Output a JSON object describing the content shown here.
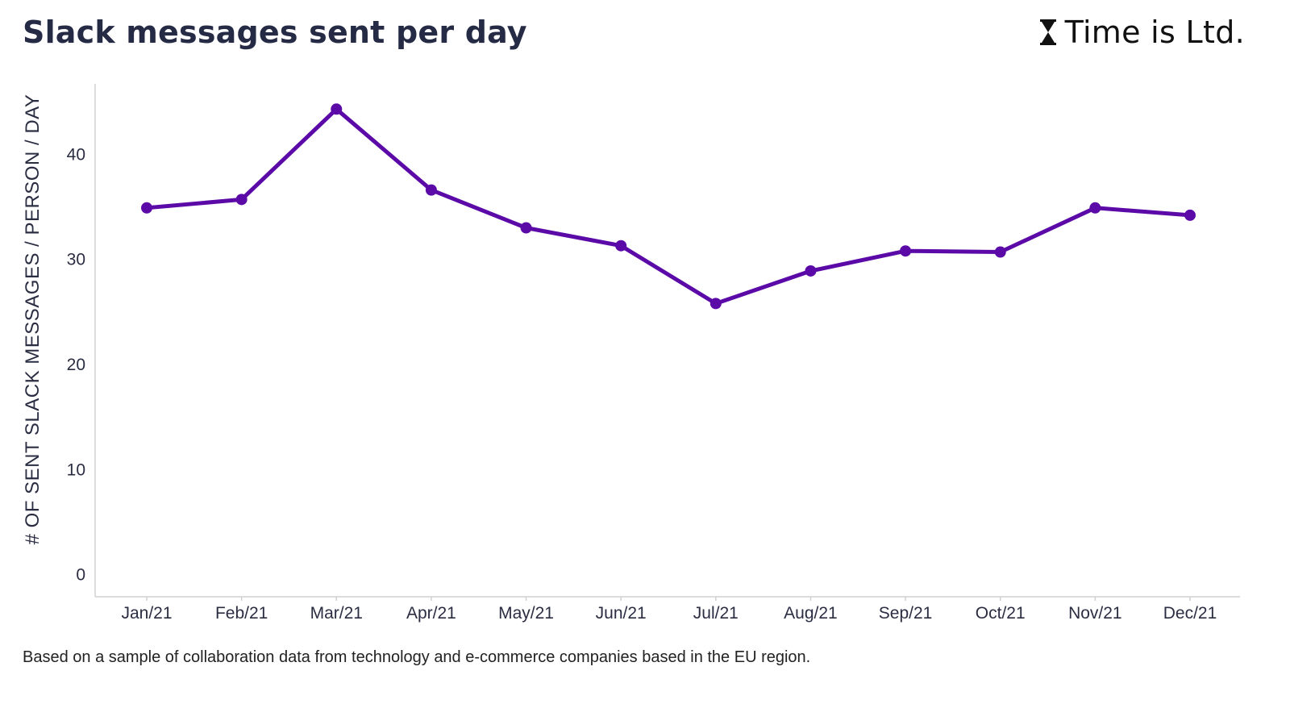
{
  "header": {
    "title": "Slack messages sent per day",
    "logo_text": "Time is Ltd.",
    "logo_icon": "hourglass-icon"
  },
  "footnote": "Based on a sample of collaboration data from technology and e-commerce companies based in the EU region.",
  "colors": {
    "series": "#5b0aa8",
    "axis": "#d0d0d0",
    "title": "#262b45",
    "text": "#2b2d42"
  },
  "chart_data": {
    "type": "line",
    "title": "Slack messages sent per day",
    "xlabel": "",
    "ylabel": "# OF SENT SLACK MESSAGES / PERSON / DAY",
    "categories": [
      "Jan/21",
      "Feb/21",
      "Mar/21",
      "Apr/21",
      "May/21",
      "Jun/21",
      "Jul/21",
      "Aug/21",
      "Sep/21",
      "Oct/21",
      "Nov/21",
      "Dec/21"
    ],
    "series": [
      {
        "values": [
          34.9,
          35.7,
          44.3,
          36.6,
          33.0,
          31.3,
          25.8,
          28.9,
          30.8,
          30.7,
          34.9,
          34.2
        ]
      }
    ],
    "yticks": [
      0,
      10,
      20,
      30,
      40
    ],
    "ylim": [
      -2.1,
      46.7
    ],
    "grid": false,
    "legend": "none"
  }
}
